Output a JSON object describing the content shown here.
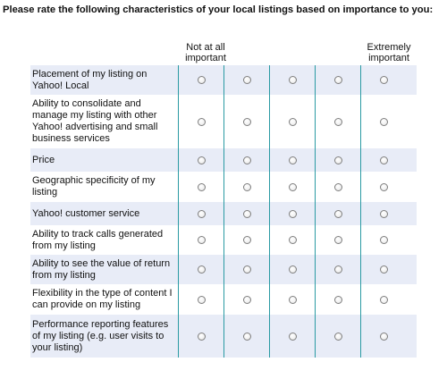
{
  "question": "Please rate the following characteristics of your local listings based on importance to you:",
  "scale": {
    "left_label": "Not at all important",
    "right_label": "Extremely important",
    "points": 5
  },
  "items": [
    "Placement of my listing on Yahoo! Local",
    "Ability to consolidate and manage my listing with other Yahoo! advertising and small business services",
    "Price",
    "Geographic specificity of my listing",
    "Yahoo! customer service",
    "Ability to track calls generated from my listing",
    "Ability to see the value of return from my listing",
    "Flexibility in the type of content I can provide on my listing",
    "Performance reporting features of my listing (e.g. user visits to your listing)"
  ],
  "colors": {
    "row_shade": "#e8ecf7",
    "divider": "#2a9aa3"
  }
}
